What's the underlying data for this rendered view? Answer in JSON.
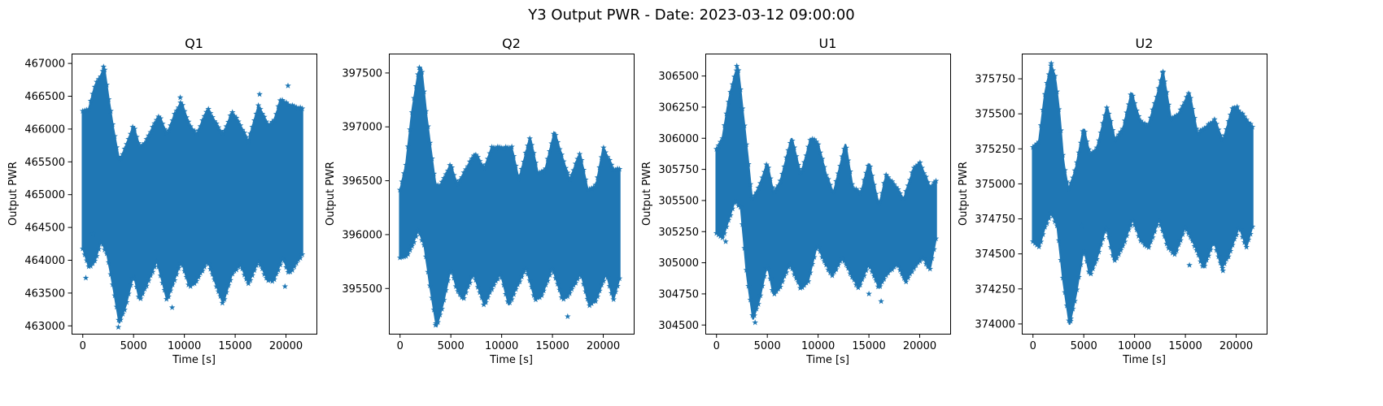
{
  "figure_title": "Y3 Output PWR - Date: 2023-03-12 09:00:00",
  "series_color": "#1f77b4",
  "chart_data": [
    {
      "type": "scatter",
      "marker": "star",
      "title": "Q1",
      "xlabel": "Time [s]",
      "ylabel": "Output PWR",
      "xlim": [
        -1100,
        23000
      ],
      "ylim": [
        462880,
        467150
      ],
      "xticks": [
        0,
        5000,
        10000,
        15000,
        20000
      ],
      "yticks": [
        463000,
        463500,
        464000,
        464500,
        465000,
        465500,
        466000,
        466500,
        467000
      ],
      "x_range": [
        0,
        21600
      ],
      "mean": 465000,
      "envelope_upper": [
        [
          0,
          466250
        ],
        [
          600,
          466300
        ],
        [
          1200,
          466650
        ],
        [
          1800,
          466800
        ],
        [
          2100,
          466950
        ],
        [
          2500,
          466500
        ],
        [
          3000,
          466000
        ],
        [
          3600,
          465500
        ],
        [
          4200,
          465700
        ],
        [
          5000,
          466050
        ],
        [
          5600,
          465700
        ],
        [
          6200,
          465800
        ],
        [
          7500,
          466200
        ],
        [
          8300,
          465900
        ],
        [
          9000,
          466200
        ],
        [
          9700,
          466400
        ],
        [
          10500,
          466050
        ],
        [
          11200,
          465900
        ],
        [
          12300,
          466300
        ],
        [
          13200,
          466050
        ],
        [
          13800,
          465900
        ],
        [
          14700,
          466250
        ],
        [
          15500,
          466050
        ],
        [
          16300,
          465800
        ],
        [
          17300,
          466350
        ],
        [
          18200,
          466050
        ],
        [
          18800,
          466100
        ],
        [
          19500,
          466450
        ],
        [
          20300,
          466350
        ],
        [
          21600,
          466300
        ]
      ],
      "envelope_lower": [
        [
          0,
          464200
        ],
        [
          600,
          463900
        ],
        [
          1200,
          464000
        ],
        [
          1800,
          464300
        ],
        [
          2400,
          464100
        ],
        [
          3000,
          463600
        ],
        [
          3600,
          463050
        ],
        [
          4200,
          463300
        ],
        [
          5000,
          463800
        ],
        [
          5600,
          463400
        ],
        [
          6200,
          463600
        ],
        [
          7300,
          464000
        ],
        [
          8300,
          463400
        ],
        [
          9000,
          463700
        ],
        [
          9700,
          464000
        ],
        [
          10500,
          463600
        ],
        [
          11200,
          463700
        ],
        [
          12300,
          464000
        ],
        [
          13200,
          463600
        ],
        [
          13800,
          463350
        ],
        [
          14700,
          463800
        ],
        [
          15500,
          463950
        ],
        [
          16300,
          463650
        ],
        [
          17300,
          464000
        ],
        [
          18200,
          463700
        ],
        [
          18800,
          463700
        ],
        [
          19700,
          464050
        ],
        [
          20300,
          463800
        ],
        [
          21600,
          464100
        ]
      ],
      "outliers": [
        [
          2050,
          466950
        ],
        [
          3500,
          462980
        ],
        [
          300,
          463730
        ],
        [
          8800,
          463280
        ],
        [
          9600,
          466480
        ],
        [
          17400,
          466530
        ],
        [
          20200,
          466660
        ],
        [
          19900,
          463600
        ],
        [
          1000,
          464400
        ]
      ]
    },
    {
      "type": "scatter",
      "marker": "star",
      "title": "Q2",
      "xlabel": "Time [s]",
      "ylabel": "Output PWR",
      "xlim": [
        -1100,
        23000
      ],
      "ylim": [
        395080,
        397680
      ],
      "xticks": [
        0,
        5000,
        10000,
        15000,
        20000
      ],
      "yticks": [
        395500,
        396000,
        396500,
        397000,
        397500
      ],
      "x_range": [
        0,
        21600
      ],
      "mean": 396100,
      "envelope_upper": [
        [
          0,
          396400
        ],
        [
          600,
          396650
        ],
        [
          1200,
          397150
        ],
        [
          1800,
          397500
        ],
        [
          2100,
          397550
        ],
        [
          2600,
          397100
        ],
        [
          3000,
          396800
        ],
        [
          3500,
          396450
        ],
        [
          4000,
          396450
        ],
        [
          5000,
          396650
        ],
        [
          5600,
          396450
        ],
        [
          6200,
          396550
        ],
        [
          7400,
          396750
        ],
        [
          8300,
          396600
        ],
        [
          9000,
          396800
        ],
        [
          10000,
          396800
        ],
        [
          11000,
          396800
        ],
        [
          11700,
          396500
        ],
        [
          12800,
          396900
        ],
        [
          13600,
          396550
        ],
        [
          14300,
          396600
        ],
        [
          15200,
          396950
        ],
        [
          16000,
          396700
        ],
        [
          16700,
          396500
        ],
        [
          17700,
          396750
        ],
        [
          18500,
          396400
        ],
        [
          19300,
          396450
        ],
        [
          20000,
          396800
        ],
        [
          21000,
          396600
        ],
        [
          21600,
          396600
        ]
      ],
      "envelope_lower": [
        [
          0,
          395800
        ],
        [
          600,
          395800
        ],
        [
          1200,
          395900
        ],
        [
          1800,
          396050
        ],
        [
          2400,
          395900
        ],
        [
          3000,
          395500
        ],
        [
          3600,
          395150
        ],
        [
          4200,
          395350
        ],
        [
          5000,
          395700
        ],
        [
          5600,
          395500
        ],
        [
          6200,
          395400
        ],
        [
          7200,
          395650
        ],
        [
          8300,
          395350
        ],
        [
          9000,
          395500
        ],
        [
          9900,
          395650
        ],
        [
          10700,
          395350
        ],
        [
          11400,
          395500
        ],
        [
          12400,
          395700
        ],
        [
          13300,
          395400
        ],
        [
          14000,
          395450
        ],
        [
          15000,
          395700
        ],
        [
          16000,
          395400
        ],
        [
          16600,
          395450
        ],
        [
          17800,
          395650
        ],
        [
          18600,
          395350
        ],
        [
          19300,
          395400
        ],
        [
          20300,
          395650
        ],
        [
          21000,
          395400
        ],
        [
          21600,
          395600
        ]
      ],
      "outliers": [
        [
          1900,
          397550
        ],
        [
          16500,
          395240
        ],
        [
          3500,
          395160
        ]
      ]
    },
    {
      "type": "scatter",
      "marker": "star",
      "title": "U1",
      "xlabel": "Time [s]",
      "ylabel": "Output PWR",
      "xlim": [
        -1100,
        23000
      ],
      "ylim": [
        304430,
        306680
      ],
      "xticks": [
        0,
        5000,
        10000,
        15000,
        20000
      ],
      "yticks": [
        304500,
        304750,
        305000,
        305250,
        305500,
        305750,
        306000,
        306250,
        306500
      ],
      "x_range": [
        0,
        21600
      ],
      "mean": 305300,
      "envelope_upper": [
        [
          0,
          305900
        ],
        [
          600,
          306000
        ],
        [
          1200,
          306300
        ],
        [
          1800,
          306500
        ],
        [
          2100,
          306580
        ],
        [
          2600,
          306200
        ],
        [
          3000,
          305900
        ],
        [
          3500,
          305500
        ],
        [
          4200,
          305600
        ],
        [
          5000,
          305800
        ],
        [
          5600,
          305550
        ],
        [
          6300,
          305650
        ],
        [
          7400,
          306000
        ],
        [
          8300,
          305700
        ],
        [
          9300,
          306000
        ],
        [
          10000,
          305950
        ],
        [
          10800,
          305700
        ],
        [
          11500,
          305550
        ],
        [
          12700,
          305950
        ],
        [
          13400,
          305600
        ],
        [
          14200,
          305550
        ],
        [
          15000,
          305800
        ],
        [
          16000,
          305450
        ],
        [
          16700,
          305700
        ],
        [
          17700,
          305600
        ],
        [
          18400,
          305500
        ],
        [
          19400,
          305750
        ],
        [
          20000,
          305800
        ],
        [
          21000,
          305600
        ],
        [
          21600,
          305650
        ]
      ],
      "envelope_lower": [
        [
          0,
          305250
        ],
        [
          600,
          305200
        ],
        [
          1200,
          305350
        ],
        [
          1800,
          305500
        ],
        [
          2400,
          305450
        ],
        [
          3000,
          304900
        ],
        [
          3600,
          304550
        ],
        [
          4200,
          304700
        ],
        [
          5000,
          305000
        ],
        [
          5600,
          304750
        ],
        [
          6200,
          304800
        ],
        [
          7200,
          305000
        ],
        [
          8300,
          304800
        ],
        [
          9000,
          304850
        ],
        [
          9900,
          305150
        ],
        [
          10700,
          305000
        ],
        [
          11400,
          304900
        ],
        [
          12400,
          305050
        ],
        [
          13300,
          304900
        ],
        [
          14000,
          304800
        ],
        [
          15000,
          305000
        ],
        [
          16000,
          304800
        ],
        [
          16600,
          304900
        ],
        [
          17800,
          305000
        ],
        [
          18600,
          304850
        ],
        [
          19300,
          304950
        ],
        [
          20300,
          305050
        ],
        [
          21000,
          304950
        ],
        [
          21600,
          305200
        ]
      ],
      "outliers": [
        [
          2000,
          306580
        ],
        [
          900,
          305170
        ],
        [
          3800,
          304520
        ],
        [
          16200,
          304690
        ],
        [
          15000,
          304750
        ]
      ]
    },
    {
      "type": "scatter",
      "marker": "star",
      "title": "U2",
      "xlabel": "Time [s]",
      "ylabel": "Output PWR",
      "xlim": [
        -1100,
        23000
      ],
      "ylim": [
        373930,
        375930
      ],
      "xticks": [
        0,
        5000,
        10000,
        15000,
        20000
      ],
      "yticks": [
        374000,
        374250,
        374500,
        374750,
        375000,
        375250,
        375500,
        375750
      ],
      "x_range": [
        0,
        21600
      ],
      "mean": 374900,
      "envelope_upper": [
        [
          0,
          375250
        ],
        [
          600,
          375300
        ],
        [
          1200,
          375650
        ],
        [
          1800,
          375850
        ],
        [
          2200,
          375750
        ],
        [
          2600,
          375500
        ],
        [
          3000,
          375150
        ],
        [
          3500,
          374950
        ],
        [
          4200,
          375100
        ],
        [
          5000,
          375400
        ],
        [
          5600,
          375200
        ],
        [
          6300,
          375250
        ],
        [
          7300,
          375550
        ],
        [
          8100,
          375300
        ],
        [
          8900,
          375400
        ],
        [
          9700,
          375650
        ],
        [
          10500,
          375450
        ],
        [
          11300,
          375400
        ],
        [
          12300,
          375650
        ],
        [
          12800,
          375800
        ],
        [
          13600,
          375450
        ],
        [
          14400,
          375500
        ],
        [
          15400,
          375650
        ],
        [
          16200,
          375350
        ],
        [
          17000,
          375400
        ],
        [
          17900,
          375450
        ],
        [
          18700,
          375300
        ],
        [
          19700,
          375550
        ],
        [
          20500,
          375500
        ],
        [
          21600,
          375400
        ]
      ],
      "envelope_lower": [
        [
          0,
          374600
        ],
        [
          600,
          374550
        ],
        [
          1200,
          374700
        ],
        [
          1800,
          374800
        ],
        [
          2400,
          374700
        ],
        [
          3000,
          374300
        ],
        [
          3600,
          374000
        ],
        [
          4200,
          374200
        ],
        [
          5000,
          374550
        ],
        [
          5600,
          374350
        ],
        [
          6200,
          374450
        ],
        [
          7200,
          374700
        ],
        [
          8000,
          374450
        ],
        [
          8800,
          374550
        ],
        [
          9800,
          374750
        ],
        [
          10600,
          374600
        ],
        [
          11400,
          374550
        ],
        [
          12400,
          374750
        ],
        [
          13300,
          374550
        ],
        [
          14000,
          374500
        ],
        [
          15000,
          374700
        ],
        [
          16000,
          374550
        ],
        [
          16800,
          374400
        ],
        [
          17800,
          374600
        ],
        [
          18600,
          374400
        ],
        [
          19300,
          374500
        ],
        [
          20300,
          374700
        ],
        [
          21000,
          374550
        ],
        [
          21600,
          374700
        ]
      ],
      "outliers": [
        [
          1800,
          375860
        ],
        [
          12800,
          375800
        ],
        [
          20100,
          375550
        ],
        [
          4800,
          374700
        ],
        [
          16200,
          374560
        ],
        [
          15400,
          374420
        ],
        [
          18700,
          374380
        ],
        [
          3700,
          374020
        ]
      ]
    }
  ]
}
